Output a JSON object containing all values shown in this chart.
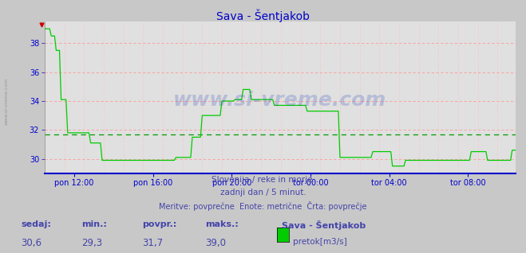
{
  "title": "Sava - Šentjakob",
  "bg_color": "#c8c8c8",
  "plot_bg_color": "#e0e0e0",
  "grid_color_h": "#ff9999",
  "grid_color_v": "#ff9999",
  "line_color": "#00cc00",
  "avg_line_color": "#009900",
  "avg_value": 31.7,
  "x_axis_color": "#0000cc",
  "y_axis_color": "#0000cc",
  "title_color": "#0000cc",
  "text_color": "#4444aa",
  "yticks": [
    30,
    32,
    34,
    36,
    38
  ],
  "ylim": [
    29.0,
    39.5
  ],
  "xlim": [
    0,
    287
  ],
  "x_tick_positions": [
    18,
    66,
    114,
    162,
    210,
    258
  ],
  "x_labels": [
    "pon 12:00",
    "pon 16:00",
    "pon 20:00",
    "tor 00:00",
    "tor 04:00",
    "tor 08:00"
  ],
  "footer_line1": "Slovenija / reke in morje.",
  "footer_line2": "zadnji dan / 5 minut.",
  "footer_line3": "Meritve: povprečne  Enote: metrične  Črta: povprečje",
  "bottom_labels": [
    "sedaj:",
    "min.:",
    "povpr.:",
    "maks.:"
  ],
  "bottom_values": [
    "30,6",
    "29,3",
    "31,7",
    "39,0"
  ],
  "bottom_series": "Sava - Šentjakob",
  "bottom_legend": "pretok[m3/s]",
  "legend_color": "#00cc00",
  "watermark": "www.si-vreme.com",
  "n_points": 288
}
